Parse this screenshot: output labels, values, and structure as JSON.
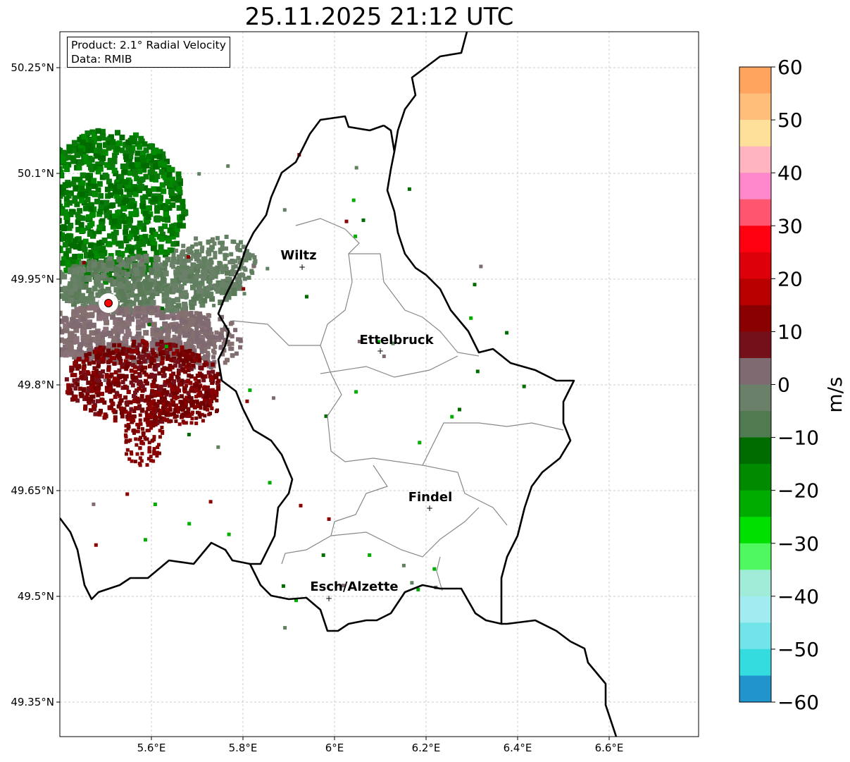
{
  "title": "25.11.2025 21:12 UTC",
  "info": {
    "product": "Product: 2.1° Radial Velocity",
    "data": "Data: RMIB"
  },
  "axes": {
    "lon_ticks": [
      "5.6°E",
      "5.8°E",
      "6°E",
      "6.2°E",
      "6.4°E",
      "6.6°E"
    ],
    "lat_ticks": [
      "50.25°N",
      "50.1°N",
      "49.95°N",
      "49.8°N",
      "49.65°N",
      "49.5°N",
      "49.35°N"
    ]
  },
  "colorbar": {
    "label": "m/s",
    "ticks": [
      "60",
      "50",
      "40",
      "30",
      "20",
      "10",
      "0",
      "−10",
      "−20",
      "−30",
      "−40",
      "−50",
      "−60"
    ],
    "range": [
      -60,
      60
    ],
    "colors": [
      "#ffa45e",
      "#ffbf7a",
      "#ffe09a",
      "#ffb4c0",
      "#ff88cc",
      "#ff5670",
      "#ff0010",
      "#dd0008",
      "#b80000",
      "#8a0000",
      "#74101a",
      "#7f6a72",
      "#6a8068",
      "#507a50",
      "#006c00",
      "#008a00",
      "#00ac00",
      "#00e000",
      "#50f860",
      "#a0ecd8",
      "#a0ecf0",
      "#70e4e8",
      "#34dce0",
      "#2294cc"
    ]
  },
  "cities": [
    {
      "name": "Wiltz"
    },
    {
      "name": "Ettelbruck"
    },
    {
      "name": "Findel"
    },
    {
      "name": "Esch/Alzette"
    }
  ],
  "radar_site_color": "#ff0000"
}
